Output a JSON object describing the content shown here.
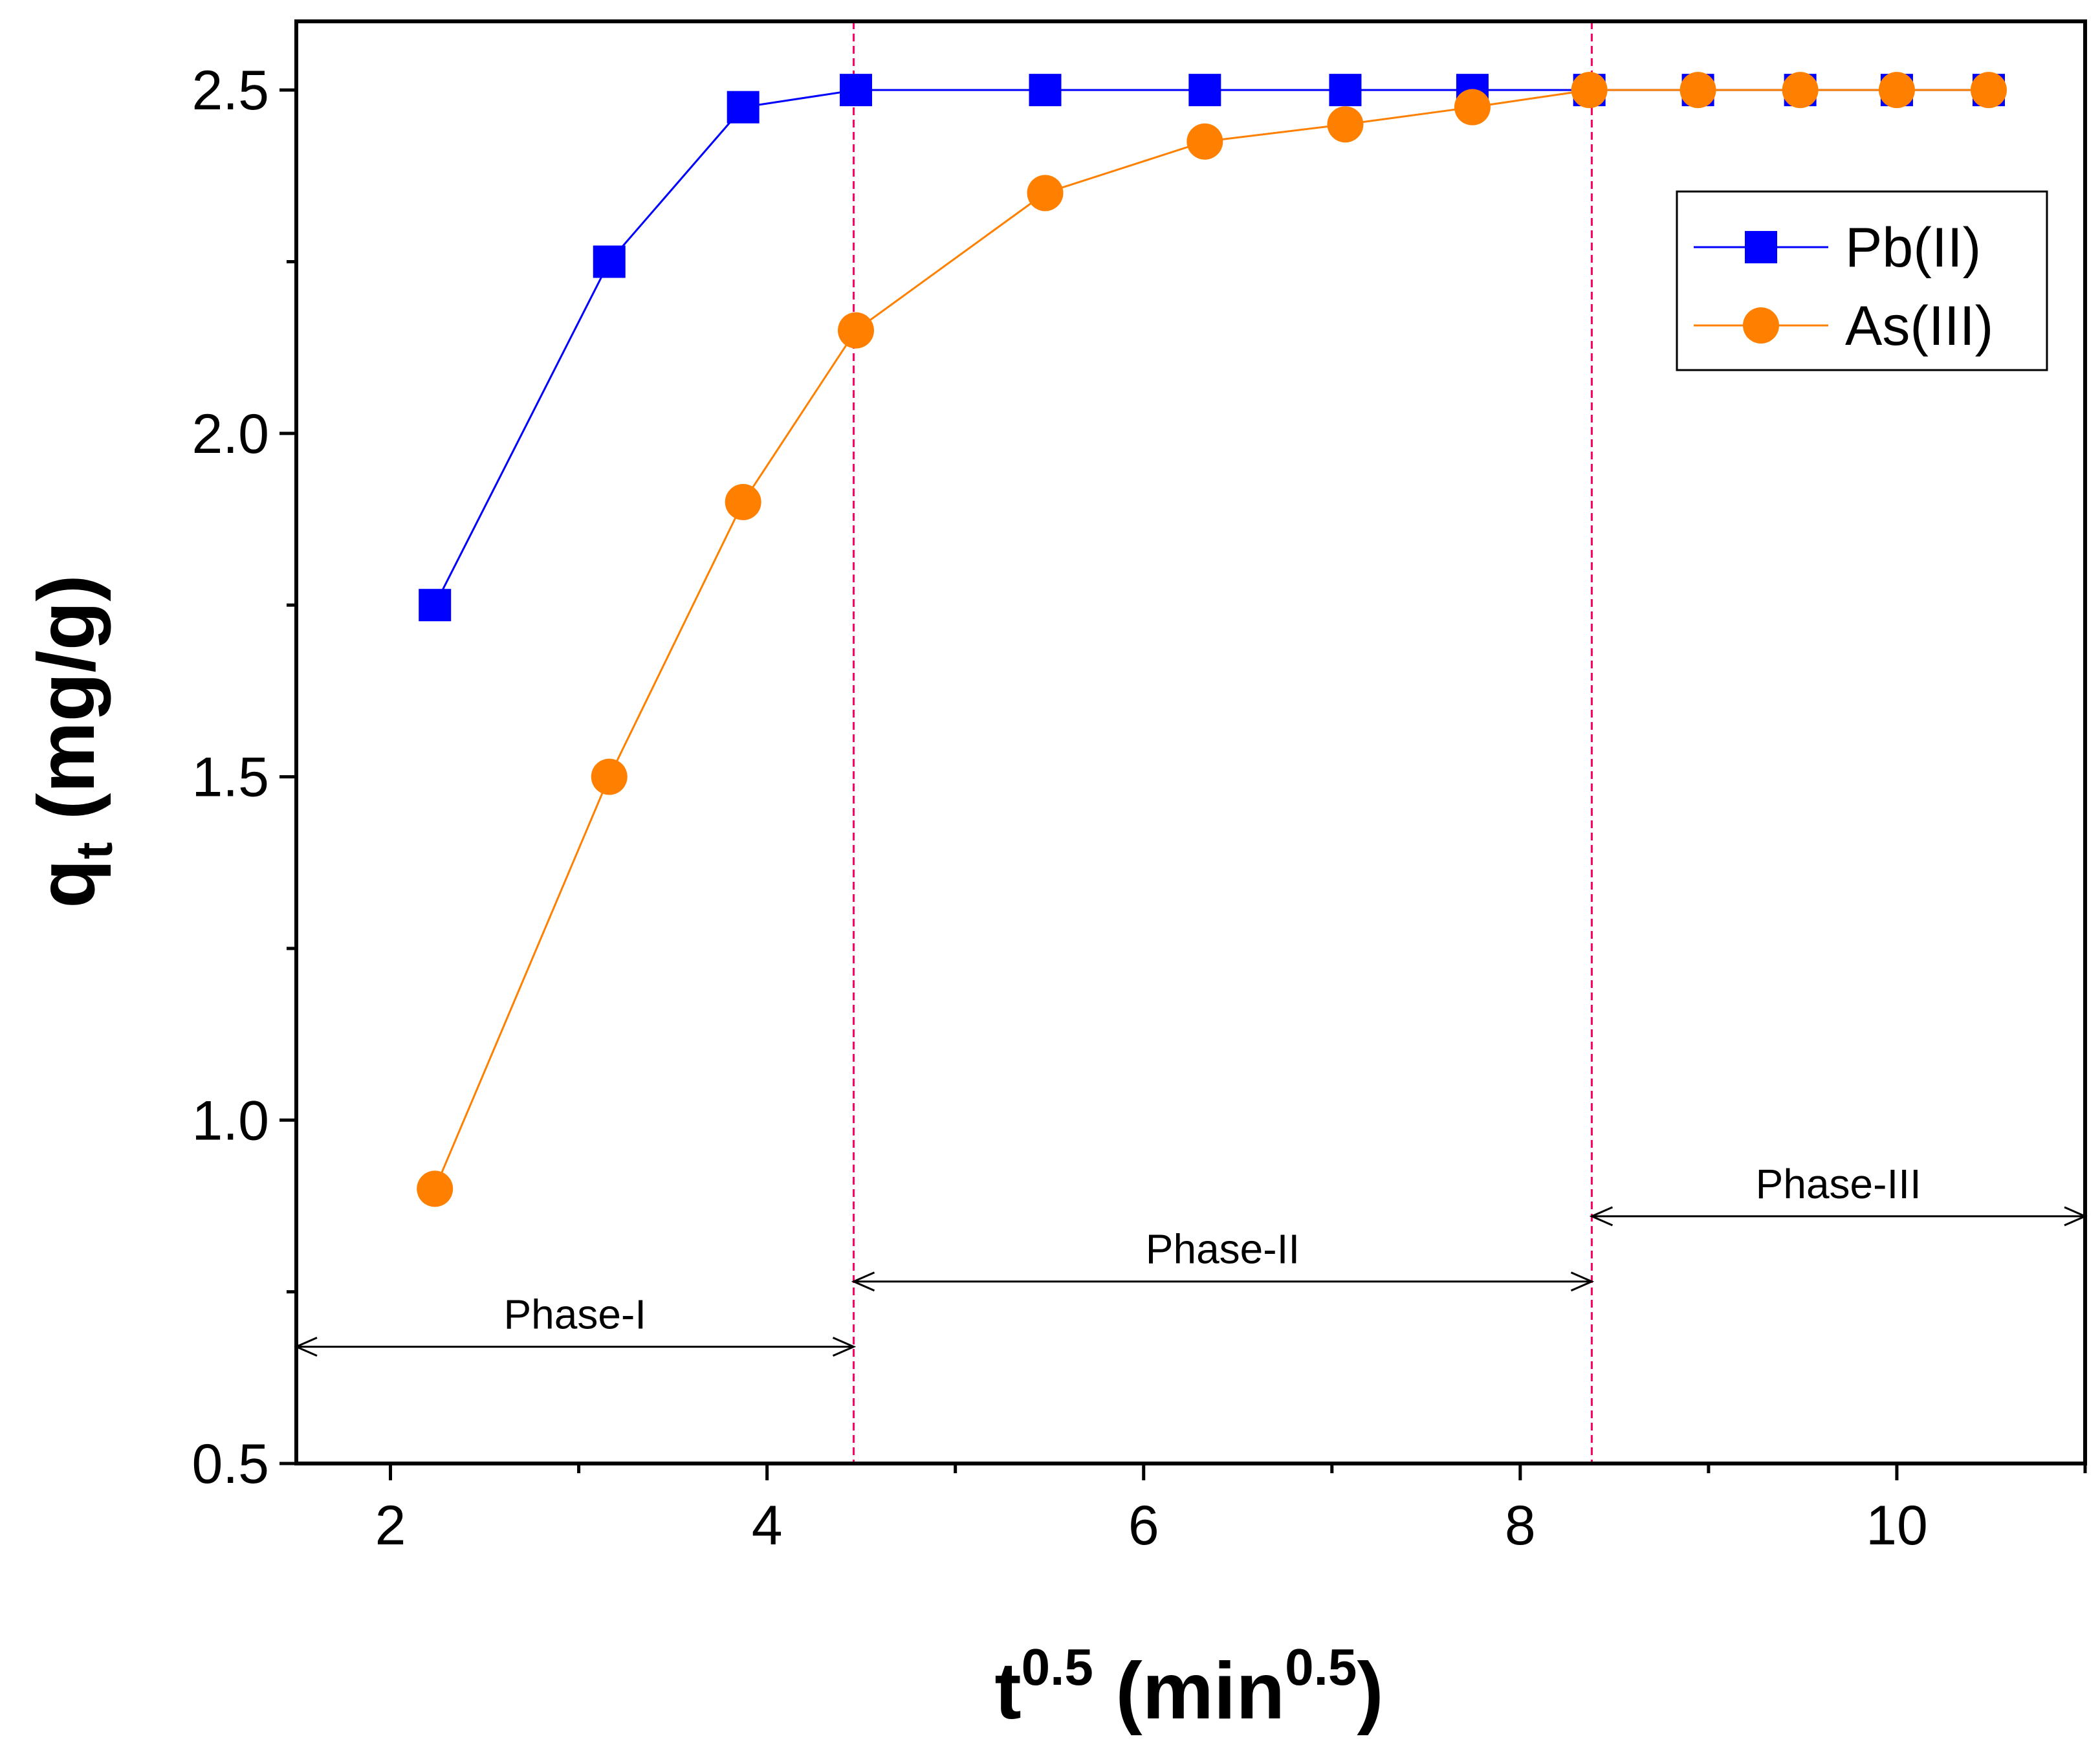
{
  "chart_data": {
    "type": "line",
    "title": "",
    "xlabel": "t",
    "xlabel_sup": "0.5",
    "xlabel_unit_open": " (min",
    "xlabel_unit_sup": "0.5",
    "xlabel_unit_close": ")",
    "ylabel": "q",
    "ylabel_sub": "t",
    "ylabel_unit": " (mg/g)",
    "xlim": [
      1.5,
      11.0
    ],
    "ylim": [
      0.5,
      2.6
    ],
    "xticks": [
      2,
      4,
      6,
      8,
      10
    ],
    "xtick_labels": [
      "2",
      "4",
      "6",
      "8",
      "10"
    ],
    "xminor": [
      3,
      5,
      7,
      9,
      11
    ],
    "yticks": [
      0.5,
      1.0,
      1.5,
      2.0,
      2.5
    ],
    "ytick_labels": [
      "0.5",
      "1.0",
      "1.5",
      "2.0",
      "2.5"
    ],
    "yminor": [
      0.75,
      1.25,
      1.75,
      2.25
    ],
    "series": [
      {
        "name": "Pb(II)",
        "color": "#0000ff",
        "marker": "square",
        "x": [
          2.236,
          3.162,
          3.873,
          4.472,
          5.477,
          6.325,
          7.071,
          7.746,
          8.367,
          8.944,
          9.487,
          10.0,
          10.488
        ],
        "y": [
          1.75,
          2.25,
          2.475,
          2.5,
          2.5,
          2.5,
          2.5,
          2.5,
          2.5,
          2.5,
          2.5,
          2.5,
          2.5
        ]
      },
      {
        "name": "As(III)",
        "color": "#ff8000",
        "marker": "circle",
        "x": [
          2.236,
          3.162,
          3.873,
          4.472,
          5.477,
          6.325,
          7.071,
          7.746,
          8.367,
          8.944,
          9.487,
          10.0,
          10.488
        ],
        "y": [
          0.9,
          1.5,
          1.9,
          2.15,
          2.35,
          2.425,
          2.45,
          2.475,
          2.5,
          2.5,
          2.5,
          2.5,
          2.5
        ]
      }
    ],
    "boundaries": {
      "color": "#ff0066",
      "x": [
        4.46,
        8.38
      ]
    },
    "phases": [
      {
        "label": "Phase-I",
        "x_start": 1.5,
        "x_end": 4.46,
        "y": 0.67
      },
      {
        "label": "Phase-II",
        "x_start": 4.46,
        "x_end": 8.38,
        "y": 0.765
      },
      {
        "label": "Phase-III",
        "x_start": 8.38,
        "x_end": 11.0,
        "y": 0.86
      }
    ],
    "legend_position": "top-right"
  }
}
